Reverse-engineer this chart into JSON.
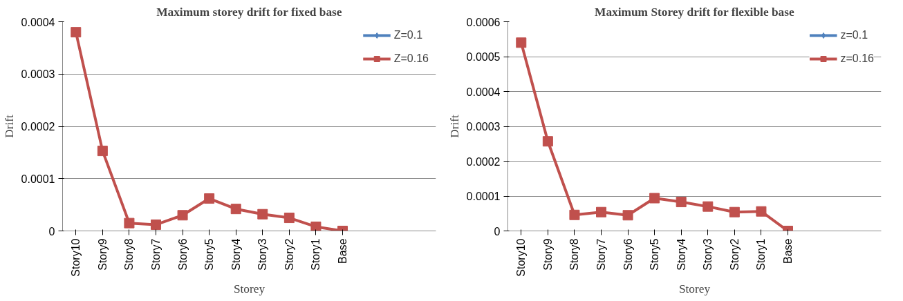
{
  "chart_data": [
    {
      "type": "line",
      "title": "Maximum storey drift for fixed base",
      "xlabel": "Storey",
      "ylabel": "Drift",
      "categories": [
        "Story10",
        "Story9",
        "Story8",
        "Story7",
        "Story6",
        "Story5",
        "Story4",
        "Story3",
        "Story2",
        "Story1",
        "Base"
      ],
      "series": [
        {
          "name": "Z=0.1",
          "color": "#4f81bd",
          "marker": "diamond",
          "values": [
            null,
            null,
            null,
            null,
            null,
            null,
            null,
            null,
            null,
            null,
            null
          ]
        },
        {
          "name": "Z=0.16",
          "color": "#c0504d",
          "marker": "square",
          "values": [
            0.00038,
            0.000153,
            1.5e-05,
            1.2e-05,
            3e-05,
            6.2e-05,
            4.2e-05,
            3.2e-05,
            2.5e-05,
            8e-06,
            0
          ]
        }
      ],
      "ylim": [
        0,
        0.0004
      ],
      "yticks": [
        0,
        0.0001,
        0.0002,
        0.0003,
        0.0004
      ],
      "grid": "y",
      "legend": "right"
    },
    {
      "type": "line",
      "title": "Maximum Storey drift for flexible base",
      "xlabel": "Storey",
      "ylabel": "Drift",
      "categories": [
        "Story10",
        "Story9",
        "Story8",
        "Story7",
        "Story6",
        "Story5",
        "Story4",
        "Story3",
        "Story2",
        "Story1",
        "Base"
      ],
      "series": [
        {
          "name": "z=0.1",
          "color": "#4f81bd",
          "marker": "diamond",
          "values": [
            null,
            null,
            null,
            null,
            null,
            null,
            null,
            null,
            null,
            null,
            null
          ]
        },
        {
          "name": "z=0.16",
          "color": "#c0504d",
          "marker": "square",
          "values": [
            0.00054,
            0.000257,
            4.6e-05,
            5.4e-05,
            4.5e-05,
            9.4e-05,
            8.3e-05,
            7e-05,
            5.4e-05,
            5.6e-05,
            0
          ]
        }
      ],
      "ylim": [
        0,
        0.0006
      ],
      "yticks": [
        0,
        0.0001,
        0.0002,
        0.0003,
        0.0004,
        0.0005,
        0.0006
      ],
      "grid": "y",
      "legend": "right"
    }
  ]
}
